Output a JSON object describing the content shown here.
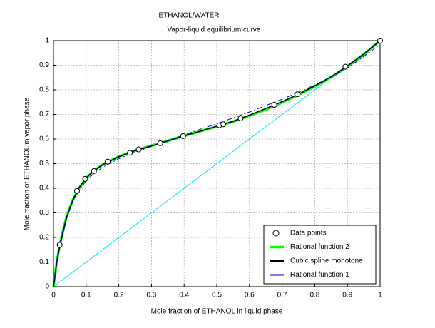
{
  "chart_data": {
    "type": "line",
    "title": "ETHANOL/WATER",
    "subtitle": "Vapor-liquid equilibrium curve",
    "xlabel": "Mole fraction of ETHANOL in liquid phase",
    "ylabel": "Mole fraction of ETHANOL in vapor phase",
    "xlim": [
      0,
      1
    ],
    "ylim": [
      0,
      1
    ],
    "xticks": [
      0,
      0.1,
      0.2,
      0.3,
      0.4,
      0.5,
      0.6,
      0.7,
      0.8,
      0.9,
      1
    ],
    "yticks": [
      0,
      0.1,
      0.2,
      0.3,
      0.4,
      0.5,
      0.6,
      0.7,
      0.8,
      0.9,
      1
    ],
    "grid": true,
    "legend": "lower right",
    "series": [
      {
        "color": "#00e5ff",
        "linestyle": "solid",
        "linewidth": 1,
        "x": [
          0,
          1
        ],
        "values": [
          0,
          1
        ]
      },
      {
        "name": "Rational function 2",
        "color": "#00ff00",
        "linestyle": "solid",
        "linewidth": 3.5,
        "x": [
          0,
          0.01,
          0.02,
          0.04,
          0.06,
          0.08,
          0.1,
          0.12,
          0.15,
          0.2,
          0.25,
          0.3,
          0.35,
          0.4,
          0.45,
          0.5,
          0.55,
          0.6,
          0.65,
          0.7,
          0.75,
          0.8,
          0.85,
          0.9,
          0.95,
          1
        ],
        "values": [
          0,
          0.1,
          0.175,
          0.285,
          0.355,
          0.403,
          0.44,
          0.467,
          0.496,
          0.529,
          0.553,
          0.573,
          0.593,
          0.613,
          0.632,
          0.651,
          0.671,
          0.695,
          0.72,
          0.749,
          0.78,
          0.814,
          0.851,
          0.894,
          0.943,
          1
        ]
      },
      {
        "name": "Cubic spline monotone",
        "color": "#000000",
        "linestyle": "solid",
        "linewidth": 1.5,
        "x": [
          0,
          0.01,
          0.02,
          0.04,
          0.06,
          0.08,
          0.1,
          0.12,
          0.15,
          0.2,
          0.25,
          0.3,
          0.35,
          0.4,
          0.45,
          0.5,
          0.55,
          0.6,
          0.65,
          0.7,
          0.75,
          0.8,
          0.85,
          0.9,
          0.95,
          1
        ],
        "values": [
          0,
          0.1,
          0.17,
          0.28,
          0.355,
          0.405,
          0.442,
          0.466,
          0.495,
          0.528,
          0.553,
          0.572,
          0.592,
          0.613,
          0.632,
          0.652,
          0.672,
          0.697,
          0.724,
          0.752,
          0.782,
          0.816,
          0.853,
          0.897,
          0.945,
          1
        ]
      },
      {
        "name": "Rational function 1",
        "color": "#0000ff",
        "linestyle": "dashdot",
        "linewidth": 1,
        "x": [
          0,
          0.01,
          0.02,
          0.04,
          0.06,
          0.08,
          0.1,
          0.12,
          0.15,
          0.2,
          0.25,
          0.3,
          0.35,
          0.4,
          0.45,
          0.5,
          0.55,
          0.6,
          0.65,
          0.7,
          0.75,
          0.8,
          0.85,
          0.9,
          0.95,
          1
        ],
        "values": [
          0,
          0.11,
          0.18,
          0.285,
          0.35,
          0.395,
          0.43,
          0.455,
          0.485,
          0.52,
          0.547,
          0.57,
          0.593,
          0.617,
          0.64,
          0.662,
          0.686,
          0.71,
          0.736,
          0.762,
          0.79,
          0.82,
          0.852,
          0.888,
          0.935,
          0.985
        ]
      },
      {
        "name": "Data points",
        "type": "scatter",
        "color": "#000000",
        "marker": "o",
        "x": [
          0.019,
          0.072,
          0.097,
          0.124,
          0.166,
          0.234,
          0.261,
          0.327,
          0.397,
          0.508,
          0.52,
          0.573,
          0.676,
          0.747,
          0.894,
          1
        ],
        "values": [
          0.17,
          0.389,
          0.438,
          0.47,
          0.508,
          0.544,
          0.558,
          0.583,
          0.612,
          0.656,
          0.66,
          0.684,
          0.739,
          0.782,
          0.894,
          1
        ]
      }
    ]
  }
}
